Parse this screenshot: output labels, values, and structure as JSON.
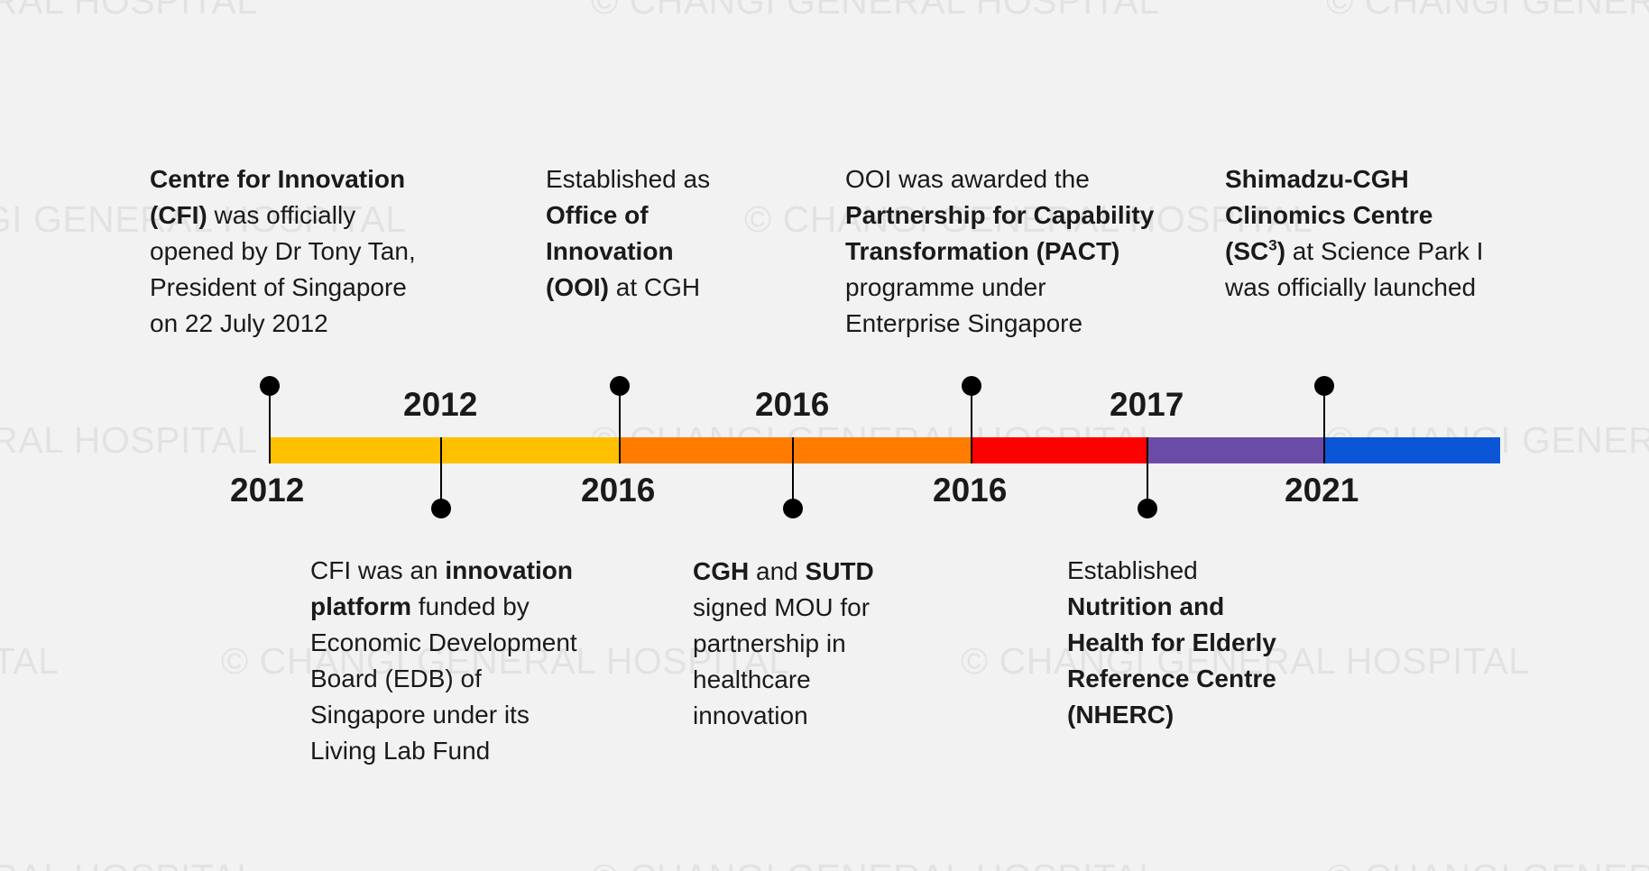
{
  "watermark": {
    "text": "© CHANGI GENERAL HOSPITAL"
  },
  "colors": {
    "segment_1": "#ffc000",
    "segment_2": "#ff7c00",
    "segment_3": "#ff0000",
    "segment_4": "#6a4ca8",
    "segment_5": "#0b56d6"
  },
  "upper_years": {
    "y1": "2012",
    "y2": "2016",
    "y3": "2016",
    "y4": "2021"
  },
  "lower_years": {
    "y1": "2012",
    "y2": "2016",
    "y3": "2017"
  },
  "events_top": {
    "e1": {
      "a": "Centre for Innovation",
      "b": "(CFI)",
      "c": " was officially",
      "d": "opened by Dr Tony Tan,",
      "e": "President of Singapore",
      "f": "on 22 July 2012"
    },
    "e2": {
      "a": "Established as",
      "b": "Office of",
      "c": "Innovation",
      "d": "(OOI)",
      "e": " at CGH"
    },
    "e3": {
      "a": "OOI was awarded the",
      "b": "Partnership for Capability",
      "c": "Transformation (PACT)",
      "d": "programme under",
      "e": "Enterprise Singapore"
    },
    "e4": {
      "a": "Shimadzu-CGH",
      "b": "Clinomics Centre",
      "c": "(SC",
      "sup": "3",
      "d": ")",
      "e": " at Science Park I",
      "f": "was officially launched"
    }
  },
  "events_bottom": {
    "e1": {
      "a": "CFI was an ",
      "b": "innovation",
      "c": "platform",
      "d": " funded by",
      "e": "Economic Development",
      "f": "Board (EDB) of",
      "g": "Singapore under its",
      "h": "Living Lab Fund"
    },
    "e2": {
      "a": "CGH",
      "b": " and ",
      "c": "SUTD",
      "d": "signed MOU for",
      "e": "partnership in",
      "f": "healthcare",
      "g": "innovation"
    },
    "e3": {
      "a": "Established",
      "b": "Nutrition and",
      "c": "Health for Elderly",
      "d": "Reference Centre",
      "e": "(NHERC)"
    }
  }
}
